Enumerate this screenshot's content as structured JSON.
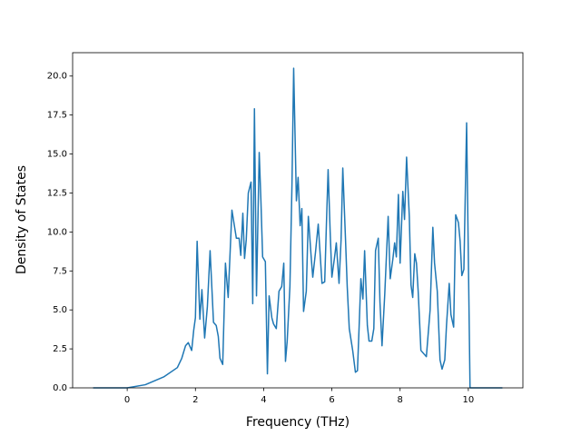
{
  "chart_data": {
    "type": "line",
    "xlabel": "Frequency (THz)",
    "ylabel": "Density of States",
    "color": "#1f77b4",
    "x": [
      -1.0,
      0,
      0.53,
      1.07,
      1.47,
      1.6,
      1.71,
      1.79,
      1.89,
      1.95,
      2.0,
      2.05,
      2.13,
      2.19,
      2.27,
      2.35,
      2.43,
      2.53,
      2.61,
      2.67,
      2.72,
      2.8,
      2.88,
      2.96,
      3.07,
      3.2,
      3.28,
      3.33,
      3.39,
      3.44,
      3.49,
      3.55,
      3.63,
      3.68,
      3.73,
      3.79,
      3.87,
      3.92,
      3.97,
      4.05,
      4.11,
      4.16,
      4.24,
      4.29,
      4.37,
      4.45,
      4.53,
      4.59,
      4.64,
      4.69,
      4.77,
      4.83,
      4.88,
      4.96,
      5.01,
      5.07,
      5.12,
      5.17,
      5.25,
      5.31,
      5.39,
      5.44,
      5.52,
      5.6,
      5.65,
      5.71,
      5.79,
      5.84,
      5.89,
      5.95,
      6.0,
      6.08,
      6.13,
      6.21,
      6.27,
      6.32,
      6.4,
      6.45,
      6.51,
      6.61,
      6.69,
      6.75,
      6.8,
      6.85,
      6.91,
      6.96,
      7.04,
      7.09,
      7.17,
      7.23,
      7.28,
      7.36,
      7.41,
      7.47,
      7.55,
      7.65,
      7.71,
      7.79,
      7.84,
      7.89,
      7.95,
      8.0,
      8.08,
      8.13,
      8.19,
      8.27,
      8.32,
      8.37,
      8.43,
      8.48,
      8.53,
      8.61,
      8.77,
      8.88,
      8.96,
      9.01,
      9.09,
      9.17,
      9.23,
      9.31,
      9.36,
      9.44,
      9.49,
      9.57,
      9.63,
      9.71,
      9.76,
      9.81,
      9.87,
      9.95,
      10.05,
      11.0
    ],
    "values": [
      0,
      0,
      0.2,
      0.7,
      1.3,
      1.9,
      2.7,
      2.9,
      2.4,
      3.7,
      4.5,
      9.4,
      4.4,
      6.3,
      3.2,
      5.2,
      8.8,
      4.2,
      4.0,
      3.3,
      1.9,
      1.5,
      8.0,
      5.8,
      11.4,
      9.6,
      9.6,
      8.5,
      11.2,
      8.3,
      9.5,
      12.5,
      13.2,
      5.4,
      17.9,
      5.9,
      15.1,
      12.0,
      8.4,
      8.1,
      0.9,
      5.9,
      4.5,
      4.1,
      3.8,
      6.2,
      6.5,
      8.0,
      1.7,
      3.0,
      6.5,
      13.0,
      20.5,
      12.0,
      13.5,
      10.4,
      11.5,
      4.9,
      6.2,
      11.0,
      8.5,
      7.1,
      8.7,
      10.5,
      8.8,
      6.7,
      6.8,
      10.5,
      14.0,
      10.0,
      7.1,
      8.4,
      9.3,
      6.7,
      9.5,
      14.1,
      9.5,
      6.5,
      3.8,
      2.4,
      1.0,
      1.1,
      4.0,
      7.0,
      5.7,
      8.8,
      4.0,
      3.0,
      3.0,
      3.8,
      8.8,
      9.6,
      5.5,
      2.7,
      6.0,
      11.0,
      7.0,
      8.3,
      9.3,
      8.4,
      12.4,
      8.0,
      12.6,
      10.8,
      14.8,
      11.0,
      6.6,
      5.8,
      8.6,
      8.0,
      6.2,
      2.4,
      2.0,
      5.0,
      10.3,
      8.0,
      6.2,
      1.8,
      1.2,
      1.8,
      4.0,
      6.7,
      4.7,
      3.9,
      11.1,
      10.6,
      9.4,
      7.2,
      7.6,
      17.0,
      0,
      0
    ],
    "xlim": [
      -1.6,
      11.6
    ],
    "ylim": [
      0,
      21.5
    ],
    "xticks": [
      0,
      2,
      4,
      6,
      8,
      10
    ],
    "yticks": [
      {
        "value": 0,
        "label": "0.0"
      },
      {
        "value": 2.5,
        "label": "2.5"
      },
      {
        "value": 5,
        "label": "5.0"
      },
      {
        "value": 7.5,
        "label": "7.5"
      },
      {
        "value": 10,
        "label": "10.0"
      },
      {
        "value": 12.5,
        "label": "12.5"
      },
      {
        "value": 15,
        "label": "15.0"
      },
      {
        "value": 17.5,
        "label": "17.5"
      },
      {
        "value": 20,
        "label": "20.0"
      }
    ]
  }
}
